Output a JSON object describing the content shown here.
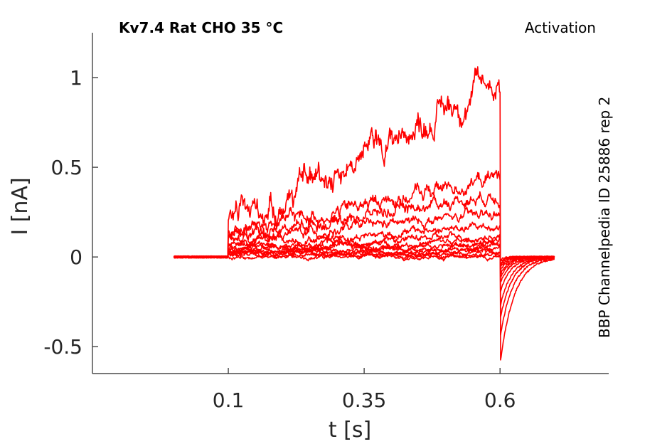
{
  "chart_data": {
    "type": "line",
    "title": "Kv7.4  Rat  CHO  35 °C",
    "subtitle": "Activation",
    "side_annotation": "BBP Channelpedia ID 25886 rep 2",
    "xlabel": "t [s]",
    "ylabel": "I [nA]",
    "xlim": [
      -0.15,
      0.8
    ],
    "ylim": [
      -0.65,
      1.25
    ],
    "x_ticks": [
      0.1,
      0.35,
      0.6
    ],
    "x_tick_labels": [
      "0.1",
      "0.35",
      "0.6"
    ],
    "y_ticks": [
      -0.5,
      0,
      0.5,
      1
    ],
    "y_tick_labels": [
      "-0.5",
      "0",
      "0.5",
      "1"
    ],
    "grid": false,
    "series_color": "#ff0000",
    "stimulus": {
      "start": 0.1,
      "end": 0.6,
      "trace_start": 0.0,
      "trace_end": 0.7
    },
    "series": [
      {
        "steady_start": 0.0,
        "steady_end": 0.0,
        "tail_peak": -0.02
      },
      {
        "steady_start": 0.01,
        "steady_end": 0.01,
        "tail_peak": -0.03
      },
      {
        "steady_start": 0.02,
        "steady_end": 0.02,
        "tail_peak": -0.04
      },
      {
        "steady_start": 0.02,
        "steady_end": 0.03,
        "tail_peak": -0.05
      },
      {
        "steady_start": 0.03,
        "steady_end": 0.04,
        "tail_peak": -0.06
      },
      {
        "steady_start": 0.03,
        "steady_end": 0.05,
        "tail_peak": -0.08
      },
      {
        "steady_start": 0.04,
        "steady_end": 0.07,
        "tail_peak": -0.1
      },
      {
        "steady_start": 0.05,
        "steady_end": 0.09,
        "tail_peak": -0.12
      },
      {
        "steady_start": 0.06,
        "steady_end": 0.12,
        "tail_peak": -0.15
      },
      {
        "steady_start": 0.08,
        "steady_end": 0.17,
        "tail_peak": -0.2
      },
      {
        "steady_start": 0.1,
        "steady_end": 0.24,
        "tail_peak": -0.28
      },
      {
        "steady_start": 0.12,
        "steady_end": 0.36,
        "tail_peak": -0.35
      },
      {
        "steady_start": 0.14,
        "steady_end": 0.45,
        "tail_peak": -0.45
      },
      {
        "steady_start": 0.18,
        "steady_end": 1.0,
        "tail_peak": -0.6
      }
    ]
  }
}
